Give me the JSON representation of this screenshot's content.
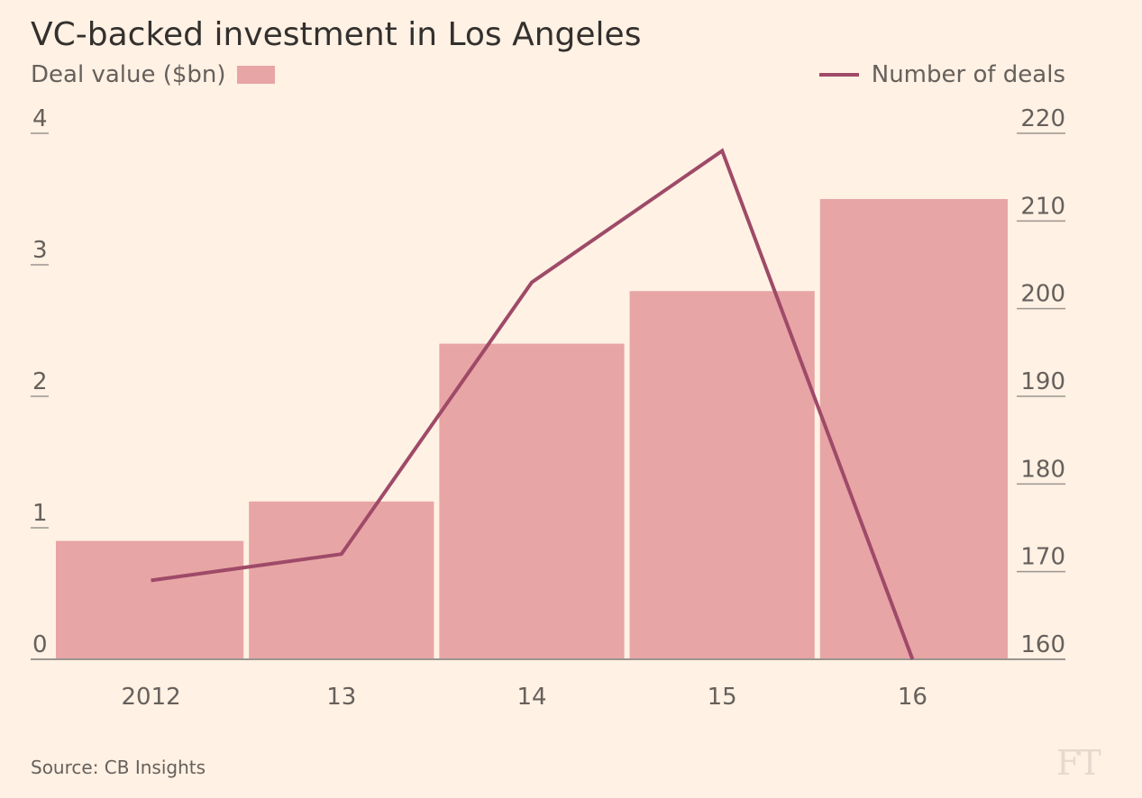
{
  "title": "VC-backed investment in Los Angeles",
  "source": "Source: CB Insights",
  "logo_text": "FT",
  "legend": {
    "bar_label": "Deal value ($bn)",
    "line_label": "Number of deals"
  },
  "colors": {
    "background": "#fff1e3",
    "bar": "#e8a5a5",
    "line": "#9e4a68",
    "axis": "#9b9590"
  },
  "chart_data": {
    "type": "bar",
    "title": "VC-backed investment in Los Angeles",
    "categories": [
      "2012",
      "13",
      "14",
      "15",
      "16"
    ],
    "series": [
      {
        "name": "Deal value ($bn)",
        "type": "bar",
        "axis": "left",
        "values": [
          0.9,
          1.2,
          2.4,
          2.8,
          3.5
        ]
      },
      {
        "name": "Number of deals",
        "type": "line",
        "axis": "right",
        "values": [
          169,
          172,
          203,
          218,
          160
        ]
      }
    ],
    "y_left": {
      "ticks": [
        "0",
        "1",
        "2",
        "3",
        "4"
      ],
      "lim": [
        0,
        4
      ]
    },
    "y_right": {
      "ticks": [
        "160",
        "170",
        "180",
        "190",
        "200",
        "210",
        "220"
      ],
      "lim": [
        160,
        220
      ]
    },
    "grid": false,
    "legend": "top"
  }
}
